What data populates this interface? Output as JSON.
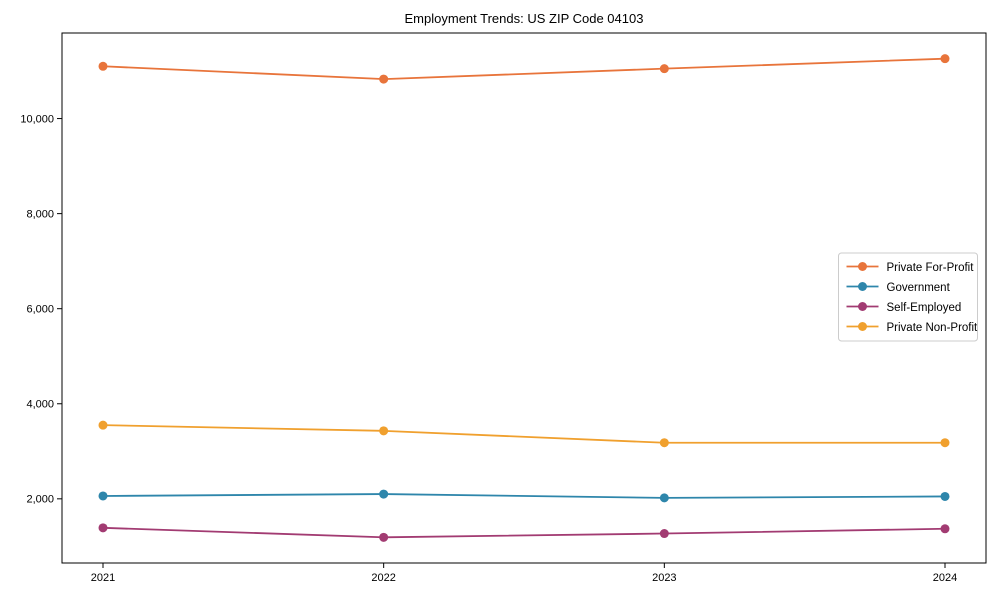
{
  "chart_data": {
    "type": "line",
    "title": "Employment Trends: US ZIP Code 04103",
    "x": [
      "2021",
      "2022",
      "2023",
      "2024"
    ],
    "series": [
      {
        "name": "Private For-Profit",
        "color": "#E8743B",
        "values": [
          11100,
          10830,
          11050,
          11260
        ]
      },
      {
        "name": "Government",
        "color": "#2E86AB",
        "values": [
          2060,
          2100,
          2020,
          2050
        ]
      },
      {
        "name": "Self-Employed",
        "color": "#A23B72",
        "values": [
          1390,
          1190,
          1270,
          1370
        ]
      },
      {
        "name": "Private Non-Profit",
        "color": "#F0A02E",
        "values": [
          3550,
          3430,
          3180,
          3180
        ]
      }
    ],
    "yticks": [
      2000,
      4000,
      6000,
      8000,
      10000
    ],
    "ytick_labels": [
      "2,000",
      "4,000",
      "6,000",
      "8,000",
      "10,000"
    ],
    "ylim": [
      650,
      11800
    ],
    "xlabel": "",
    "ylabel": "",
    "grid": false,
    "legend_position": "center right",
    "marker": "circle",
    "axis_color": "#000000",
    "legend_border_color": "#cccccc"
  }
}
